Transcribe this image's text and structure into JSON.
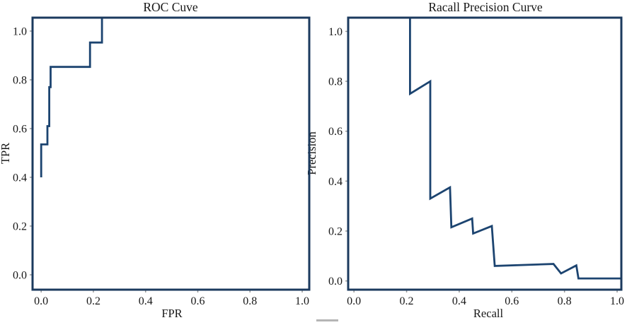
{
  "figure": {
    "background": "#ffffff",
    "curve_color": "#1c4470",
    "frame_color": "#1b3a5e",
    "tick_color": "#9a9a9a",
    "text_color": "#171717",
    "artifact_color": "#b5b5b5"
  },
  "chart_data": [
    {
      "type": "line",
      "title": "ROC Cuve",
      "xlabel": "FPR",
      "ylabel": "TPR",
      "xticks": [
        0.0,
        0.2,
        0.4,
        0.6,
        0.8,
        1.0
      ],
      "yticks": [
        0.0,
        0.2,
        0.4,
        0.6,
        0.8,
        1.0
      ],
      "xlim": [
        -0.033,
        1.027
      ],
      "ylim": [
        -0.061,
        1.055
      ],
      "grid": false,
      "legend": "none",
      "series": [
        {
          "name": "roc-curve",
          "x": [
            0.0,
            0.0,
            0.024,
            0.024,
            0.031,
            0.031,
            0.036,
            0.036,
            0.187,
            0.187,
            0.233,
            0.233
          ],
          "y": [
            0.4,
            0.535,
            0.535,
            0.61,
            0.61,
            0.77,
            0.77,
            0.853,
            0.853,
            0.953,
            0.953,
            1.055
          ]
        }
      ]
    },
    {
      "type": "line",
      "title": "Racall Precision Curve",
      "xlabel": "Recall",
      "ylabel": "Precision",
      "xticks": [
        0.0,
        0.2,
        0.4,
        0.6,
        0.8,
        1.0
      ],
      "yticks": [
        0.0,
        0.2,
        0.4,
        0.6,
        0.8,
        1.0
      ],
      "xlim": [
        -0.022,
        1.016
      ],
      "ylim": [
        -0.035,
        1.055
      ],
      "grid": false,
      "legend": "none",
      "series": [
        {
          "name": "precision-recall-curve",
          "x": [
            0.213,
            0.213,
            0.29,
            0.29,
            0.365,
            0.37,
            0.449,
            0.453,
            0.524,
            0.535,
            0.758,
            0.787,
            0.845,
            0.853,
            1.016
          ],
          "y": [
            1.055,
            0.75,
            0.8,
            0.33,
            0.375,
            0.215,
            0.25,
            0.19,
            0.22,
            0.06,
            0.068,
            0.03,
            0.062,
            0.01,
            0.01
          ]
        }
      ]
    }
  ]
}
